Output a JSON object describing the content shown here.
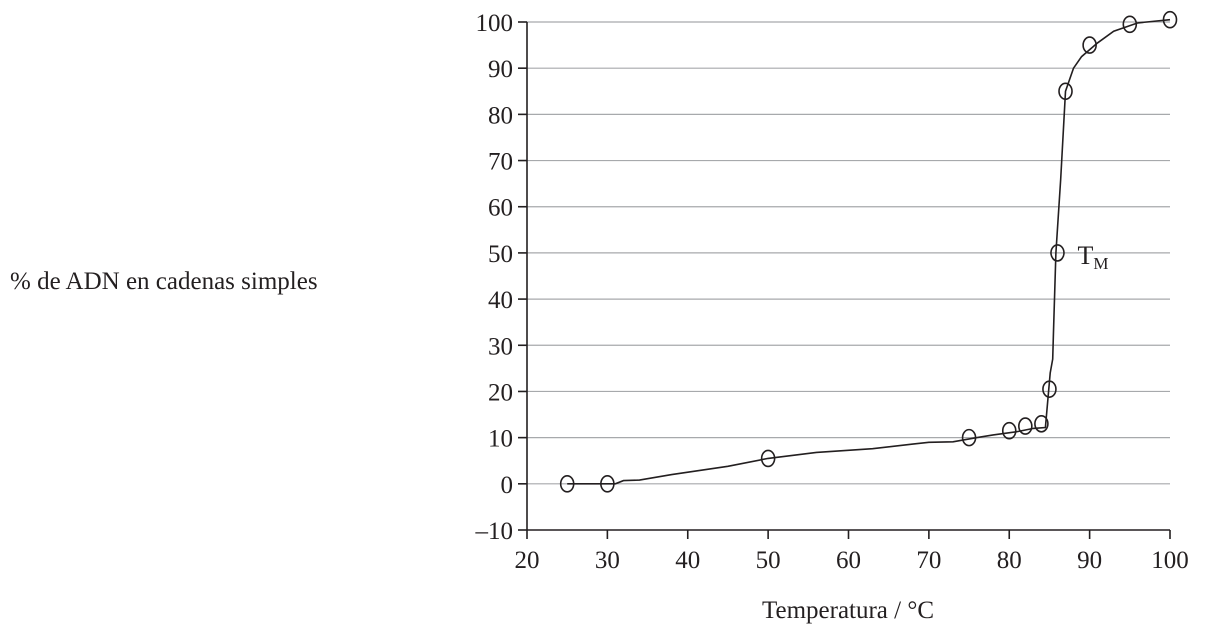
{
  "chart_data": {
    "type": "line",
    "title": "",
    "xlabel": "Temperatura / °C",
    "ylabel": "% de ADN en cadenas simples",
    "xlim": [
      20,
      100
    ],
    "ylim": [
      -10,
      100
    ],
    "x_ticks": [
      20,
      30,
      40,
      50,
      60,
      70,
      80,
      90,
      100
    ],
    "y_ticks": [
      -10,
      0,
      10,
      20,
      30,
      40,
      50,
      60,
      70,
      80,
      90,
      100
    ],
    "x_tick_labels": [
      "20",
      "30",
      "40",
      "50",
      "60",
      "70",
      "80",
      "90",
      "100"
    ],
    "y_tick_labels": [
      "–10",
      "0",
      "10",
      "20",
      "30",
      "40",
      "50",
      "60",
      "70",
      "80",
      "90",
      "100"
    ],
    "grid": "horizontal",
    "points": [
      {
        "x": 25,
        "y": 0
      },
      {
        "x": 30,
        "y": 0
      },
      {
        "x": 50,
        "y": 5.5
      },
      {
        "x": 75,
        "y": 10
      },
      {
        "x": 80,
        "y": 11.5
      },
      {
        "x": 82,
        "y": 12.5
      },
      {
        "x": 84,
        "y": 13
      },
      {
        "x": 85,
        "y": 20.5
      },
      {
        "x": 86,
        "y": 50
      },
      {
        "x": 87,
        "y": 85
      },
      {
        "x": 90,
        "y": 95
      },
      {
        "x": 95,
        "y": 99.5
      },
      {
        "x": 100,
        "y": 100.5
      }
    ],
    "curve": [
      [
        25,
        0
      ],
      [
        31,
        0
      ],
      [
        32,
        0.7
      ],
      [
        34,
        0.8
      ],
      [
        38,
        2
      ],
      [
        45,
        3.8
      ],
      [
        50,
        5.5
      ],
      [
        56,
        6.8
      ],
      [
        63,
        7.6
      ],
      [
        68,
        8.6
      ],
      [
        70,
        9
      ],
      [
        73,
        9.1
      ],
      [
        76,
        10
      ],
      [
        78,
        10.6
      ],
      [
        81,
        11.3
      ],
      [
        83,
        12
      ],
      [
        84.5,
        12.2
      ],
      [
        85.1,
        24
      ],
      [
        85.4,
        27
      ],
      [
        85.5,
        33
      ],
      [
        85.8,
        50
      ],
      [
        86.4,
        66
      ],
      [
        87,
        85
      ],
      [
        88,
        90
      ],
      [
        89,
        92.5
      ],
      [
        91,
        95.5
      ],
      [
        93,
        98
      ],
      [
        96,
        99.8
      ],
      [
        100,
        100.5
      ]
    ],
    "annotation": {
      "text": "T",
      "subscript": "M",
      "x": 86,
      "y": 50
    }
  }
}
